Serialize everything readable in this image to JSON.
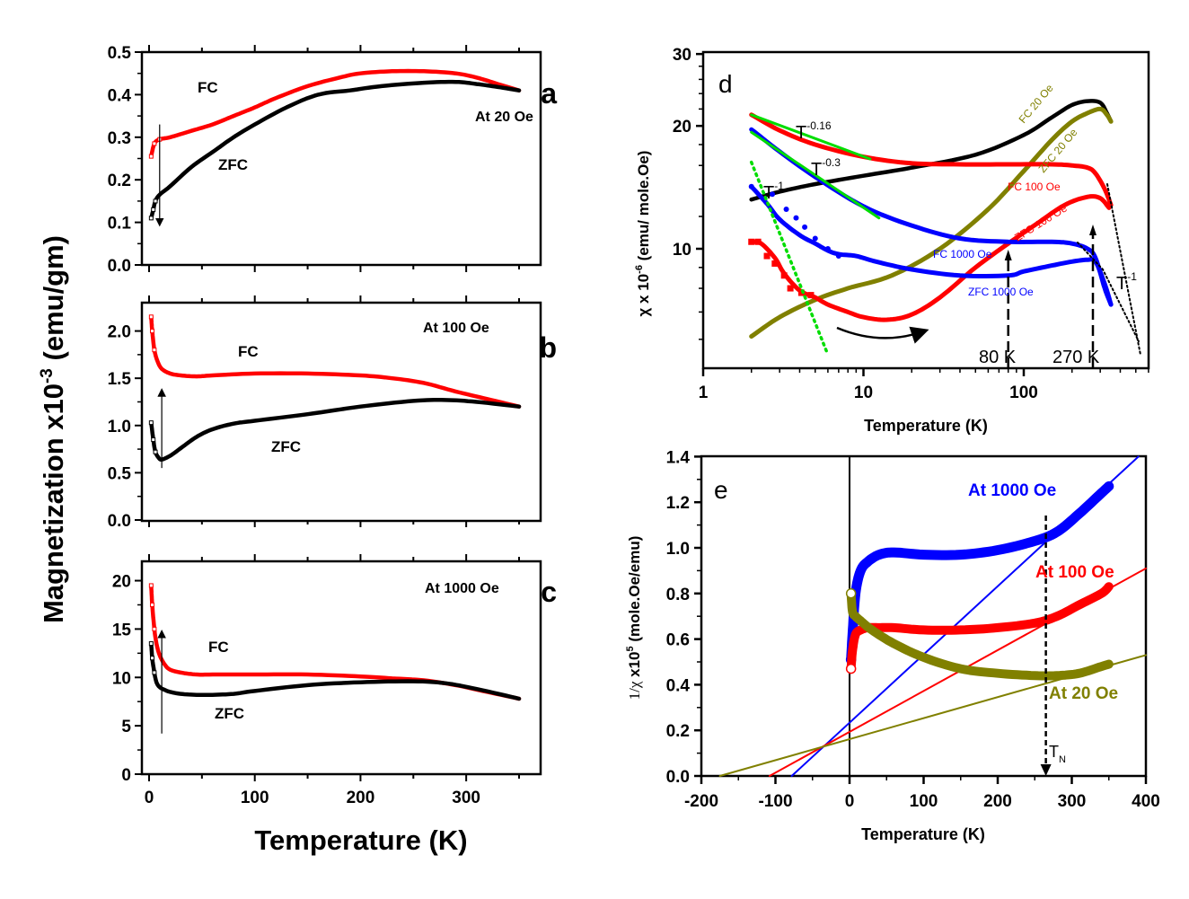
{
  "figure": {
    "shared_ylabel": "Magnetization x10",
    "shared_ylabel_exp": "-3",
    "shared_ylabel_unit": " (emu/gm)",
    "shared_xlabel": "Temperature (K)"
  },
  "colors": {
    "fc": "#ff0000",
    "zfc": "#000000",
    "blue": "#0000ff",
    "olive": "#808000",
    "green": "#00e000"
  },
  "chart_data": [
    {
      "panel": "a",
      "type": "line",
      "title": "a",
      "annotation": "At 20 Oe",
      "xlabel": "Temperature (K)",
      "ylabel": "Magnetization x10^-3 (emu/gm)",
      "xlim": [
        0,
        350
      ],
      "ylim": [
        0,
        0.5
      ],
      "yticks": [
        "0.0",
        "0.1",
        "0.2",
        "0.3",
        "0.4",
        "0.5"
      ],
      "labels": {
        "fc": "FC",
        "zfc": "ZFC"
      },
      "series": [
        {
          "name": "FC",
          "color": "#ff0000",
          "x": [
            2,
            5,
            10,
            20,
            40,
            60,
            80,
            100,
            120,
            150,
            180,
            200,
            230,
            260,
            290,
            310,
            330,
            350
          ],
          "y": [
            0.255,
            0.285,
            0.295,
            0.3,
            0.315,
            0.33,
            0.35,
            0.37,
            0.392,
            0.42,
            0.44,
            0.45,
            0.455,
            0.455,
            0.45,
            0.44,
            0.425,
            0.41
          ]
        },
        {
          "name": "ZFC",
          "color": "#000000",
          "x": [
            2,
            4,
            6,
            10,
            20,
            40,
            60,
            80,
            100,
            130,
            160,
            190,
            220,
            260,
            290,
            310,
            330,
            350
          ],
          "y": [
            0.11,
            0.13,
            0.15,
            0.165,
            0.185,
            0.23,
            0.265,
            0.3,
            0.33,
            0.37,
            0.4,
            0.41,
            0.42,
            0.428,
            0.43,
            0.425,
            0.418,
            0.41
          ]
        }
      ],
      "arrow": {
        "x": 10,
        "y_from": 0.33,
        "y_to": 0.1,
        "direction": "down"
      }
    },
    {
      "panel": "b",
      "type": "line",
      "title": "b",
      "annotation": "At 100 Oe",
      "xlim": [
        0,
        350
      ],
      "ylim": [
        0,
        2.3
      ],
      "yticks": [
        "0.0",
        "0.5",
        "1.0",
        "1.5",
        "2.0"
      ],
      "labels": {
        "fc": "FC",
        "zfc": "ZFC"
      },
      "series": [
        {
          "name": "FC",
          "color": "#ff0000",
          "x": [
            2,
            3,
            5,
            8,
            12,
            20,
            30,
            45,
            60,
            100,
            150,
            200,
            230,
            260,
            290,
            320,
            350
          ],
          "y": [
            2.15,
            2.0,
            1.8,
            1.68,
            1.6,
            1.55,
            1.53,
            1.52,
            1.53,
            1.55,
            1.55,
            1.53,
            1.5,
            1.45,
            1.36,
            1.28,
            1.2
          ]
        },
        {
          "name": "ZFC",
          "color": "#000000",
          "x": [
            2,
            4,
            6,
            9,
            12,
            20,
            30,
            45,
            60,
            80,
            100,
            150,
            200,
            250,
            280,
            310,
            350
          ],
          "y": [
            1.03,
            0.85,
            0.72,
            0.66,
            0.64,
            0.68,
            0.76,
            0.88,
            0.96,
            1.02,
            1.05,
            1.12,
            1.2,
            1.26,
            1.27,
            1.25,
            1.2
          ]
        }
      ],
      "arrow": {
        "x": 12,
        "y_from": 0.55,
        "y_to": 1.35,
        "direction": "up"
      }
    },
    {
      "panel": "c",
      "type": "line",
      "title": "c",
      "annotation": "At 1000 Oe",
      "xlim": [
        0,
        350
      ],
      "ylim": [
        0,
        21
      ],
      "yticks": [
        "0",
        "5",
        "10",
        "15",
        "20"
      ],
      "xticks": [
        "0",
        "100",
        "200",
        "300"
      ],
      "labels": {
        "fc": "FC",
        "zfc": "ZFC"
      },
      "series": [
        {
          "name": "FC",
          "color": "#ff0000",
          "x": [
            2,
            3,
            5,
            7,
            10,
            15,
            20,
            30,
            45,
            60,
            100,
            150,
            200,
            230,
            260,
            290,
            320,
            350
          ],
          "y": [
            19.5,
            17.5,
            15.0,
            13.5,
            12.3,
            11.3,
            10.8,
            10.5,
            10.3,
            10.3,
            10.3,
            10.3,
            10.1,
            9.9,
            9.7,
            9.2,
            8.5,
            7.8
          ]
        },
        {
          "name": "ZFC",
          "color": "#000000",
          "x": [
            2,
            3,
            5,
            7,
            10,
            15,
            20,
            30,
            45,
            60,
            80,
            100,
            150,
            200,
            250,
            280,
            310,
            350
          ],
          "y": [
            13.5,
            12.0,
            10.5,
            9.5,
            9.0,
            8.7,
            8.5,
            8.3,
            8.2,
            8.2,
            8.3,
            8.6,
            9.2,
            9.5,
            9.6,
            9.4,
            8.8,
            7.8
          ]
        }
      ],
      "arrow": {
        "x": 12,
        "y_from": 4.2,
        "y_to": 14.5,
        "direction": "up"
      }
    },
    {
      "panel": "d",
      "type": "line",
      "title": "d",
      "xscale": "log",
      "yscale": "log",
      "xlabel": "Temperature (K)",
      "ylabel": "χ x 10^-6 (emu/ mole.Oe)",
      "xlim": [
        1,
        600
      ],
      "ylim": [
        5.5,
        30
      ],
      "xticks": [
        "1",
        "10",
        "100"
      ],
      "yticks": [
        "10",
        "20",
        "30"
      ],
      "fit_labels": [
        {
          "base": "T",
          "exp": "-0.16"
        },
        {
          "base": "T",
          "exp": "-0.3"
        },
        {
          "base": "T",
          "exp": "-1"
        },
        {
          "base": "T",
          "exp": "-1"
        }
      ],
      "markers": [
        {
          "label": "80 K",
          "T": 80
        },
        {
          "label": "270 K",
          "T": 270
        }
      ],
      "series": [
        {
          "name": "FC 20 Oe",
          "color": "#000000",
          "x": [
            2,
            3,
            5,
            10,
            20,
            50,
            100,
            150,
            200,
            250,
            300,
            330,
            350
          ],
          "y": [
            13.2,
            13.8,
            14.4,
            15.1,
            15.8,
            17.0,
            19.0,
            21.0,
            22.5,
            23.0,
            22.8,
            21.5,
            20.5
          ]
        },
        {
          "name": "ZFC 20 Oe",
          "color": "#808000",
          "x": [
            2,
            3,
            5,
            8,
            15,
            30,
            60,
            100,
            150,
            200,
            250,
            300,
            330,
            350
          ],
          "y": [
            6.1,
            6.8,
            7.5,
            8.0,
            8.6,
            10.0,
            12.5,
            15.5,
            18.5,
            20.5,
            21.5,
            22.0,
            21.3,
            20.5
          ]
        },
        {
          "name": "FC 100 Oe",
          "color": "#ff0000",
          "x": [
            2,
            3,
            5,
            10,
            20,
            40,
            80,
            150,
            200,
            250,
            280,
            320,
            350
          ],
          "y": [
            21.3,
            19.5,
            18.0,
            16.8,
            16.2,
            16.1,
            16.1,
            16.1,
            16.0,
            15.8,
            15.3,
            14.0,
            12.8
          ]
        },
        {
          "name": "ZFC 100 Oe",
          "color": "#ff0000",
          "x": [
            2,
            2.3,
            2.8,
            3.2,
            4,
            5,
            6,
            8,
            10,
            14,
            20,
            30,
            50,
            80,
            120,
            180,
            250,
            300,
            340
          ],
          "y": [
            10.4,
            10.3,
            9.5,
            8.7,
            7.9,
            7.6,
            7.3,
            7.0,
            6.8,
            6.7,
            6.9,
            7.6,
            9.0,
            10.3,
            11.5,
            12.8,
            13.4,
            13.3,
            12.6
          ]
        },
        {
          "name": "FC 1000 Oe",
          "color": "#0000ff",
          "x": [
            2,
            3,
            5,
            10,
            20,
            40,
            80,
            150,
            200,
            250,
            280,
            320,
            350
          ],
          "y": [
            19.6,
            17.3,
            15.0,
            12.7,
            11.4,
            10.6,
            10.4,
            10.4,
            10.3,
            10.0,
            9.5,
            8.0,
            7.3
          ]
        },
        {
          "name": "ZFC 1000 Oe",
          "color": "#0000ff",
          "x": [
            2,
            2.5,
            3,
            4,
            5,
            6,
            7,
            9,
            12,
            20,
            40,
            80,
            100,
            150,
            200,
            250,
            280,
            320,
            350
          ],
          "y": [
            14.2,
            12.9,
            11.8,
            10.8,
            10.3,
            9.9,
            9.7,
            9.6,
            9.3,
            8.9,
            8.6,
            8.6,
            8.8,
            9.1,
            9.3,
            9.4,
            9.3,
            8.2,
            7.3
          ]
        }
      ],
      "series_labels": [
        "FC 20 Oe",
        "ZFC 20 Oe",
        "FC 100 Oe",
        "ZFC 100 Oe",
        "FC 1000 Oe",
        "ZFC 1000 Oe"
      ]
    },
    {
      "panel": "e",
      "type": "line",
      "title": "e",
      "xlabel": "Temperature (K)",
      "ylabel": "1/χ x10^5 (mole.Oe/emu)",
      "xlim": [
        -200,
        400
      ],
      "ylim": [
        0,
        1.4
      ],
      "xticks": [
        "-200",
        "-100",
        "0",
        "100",
        "200",
        "300",
        "400"
      ],
      "yticks": [
        "0.0",
        "0.2",
        "0.4",
        "0.6",
        "0.8",
        "1.0",
        "1.2",
        "1.4"
      ],
      "marker": {
        "label": "T",
        "sub": "N",
        "T": 265
      },
      "series": [
        {
          "name": "At 1000 Oe",
          "color": "#0000ff",
          "x": [
            2,
            4,
            8,
            15,
            25,
            40,
            60,
            100,
            150,
            200,
            250,
            280,
            310,
            340,
            350
          ],
          "y": [
            0.51,
            0.62,
            0.8,
            0.9,
            0.94,
            0.97,
            0.98,
            0.97,
            0.97,
            0.99,
            1.03,
            1.07,
            1.15,
            1.24,
            1.27
          ]
        },
        {
          "name": "At 100 Oe",
          "color": "#ff0000",
          "x": [
            2,
            4,
            8,
            15,
            25,
            40,
            60,
            100,
            150,
            200,
            250,
            280,
            310,
            340,
            350
          ],
          "y": [
            0.47,
            0.55,
            0.62,
            0.64,
            0.65,
            0.65,
            0.65,
            0.64,
            0.64,
            0.65,
            0.67,
            0.7,
            0.75,
            0.8,
            0.83
          ]
        },
        {
          "name": "At 20 Oe",
          "color": "#808000",
          "x": [
            2,
            4,
            8,
            15,
            30,
            60,
            100,
            150,
            200,
            250,
            280,
            310,
            340,
            350
          ],
          "y": [
            0.8,
            0.72,
            0.7,
            0.68,
            0.64,
            0.58,
            0.52,
            0.47,
            0.45,
            0.44,
            0.44,
            0.45,
            0.48,
            0.49
          ]
        }
      ],
      "fit_lines": [
        {
          "name": "fit 1000 Oe",
          "color": "#0000ff",
          "x": [
            -78,
            400
          ],
          "y": [
            0.0,
            1.43
          ]
        },
        {
          "name": "fit 100 Oe",
          "color": "#ff0000",
          "x": [
            -108,
            400
          ],
          "y": [
            0.0,
            0.91
          ]
        },
        {
          "name": "fit 20 Oe",
          "color": "#808000",
          "x": [
            -175,
            400
          ],
          "y": [
            0.0,
            0.53
          ]
        }
      ]
    }
  ],
  "panels": {
    "a": {
      "letter": "a",
      "field": "At 20 Oe",
      "fc": "FC",
      "zfc": "ZFC",
      "yticks": [
        "0.0",
        "0.1",
        "0.2",
        "0.3",
        "0.4",
        "0.5"
      ]
    },
    "b": {
      "letter": "b",
      "field": "At 100 Oe",
      "fc": "FC",
      "zfc": "ZFC",
      "yticks": [
        "0.0",
        "0.5",
        "1.0",
        "1.5",
        "2.0"
      ]
    },
    "c": {
      "letter": "c",
      "field": "At 1000 Oe",
      "fc": "FC",
      "zfc": "ZFC",
      "yticks": [
        "0",
        "5",
        "10",
        "15",
        "20"
      ],
      "xticks": [
        "0",
        "100",
        "200",
        "300"
      ]
    },
    "d": {
      "letter": "d",
      "ylabel_pre": "χ x 10",
      "ylabel_exp": "-6",
      "ylabel_post": " (emu/ mole.Oe)",
      "xlabel": "Temperature (K)",
      "xticks": [
        "1",
        "10",
        "100"
      ],
      "yticks": [
        "10",
        "20",
        "30"
      ],
      "t016": "-0.16",
      "t03": "-0.3",
      "t1": "-1",
      "t1b": "-1",
      "tbase": "T",
      "m80": "80 K",
      "m270": "270 K",
      "lbl_fc20": "FC 20 Oe",
      "lbl_zfc20": "ZFC 20 Oe",
      "lbl_fc100": "FC 100 Oe",
      "lbl_zfc100": "ZFC 100 Oe",
      "lbl_fc1000": "FC 1000 Oe",
      "lbl_zfc1000": "ZFC 1000 Oe"
    },
    "e": {
      "letter": "e",
      "ylabel_pre": "1/χ",
      "ylabel_mid": " x10",
      "ylabel_exp": "5",
      "ylabel_post": " (mole.Oe/emu)",
      "xlabel": "Temperature (K)",
      "xticks": [
        "-200",
        "-100",
        "0",
        "100",
        "200",
        "300",
        "400"
      ],
      "yticks": [
        "0.0",
        "0.2",
        "0.4",
        "0.6",
        "0.8",
        "1.0",
        "1.2",
        "1.4"
      ],
      "lbl_1000": "At 1000 Oe",
      "lbl_100": "At 100 Oe",
      "lbl_20": "At 20 Oe",
      "tn": "T",
      "tn_sub": "N"
    }
  }
}
